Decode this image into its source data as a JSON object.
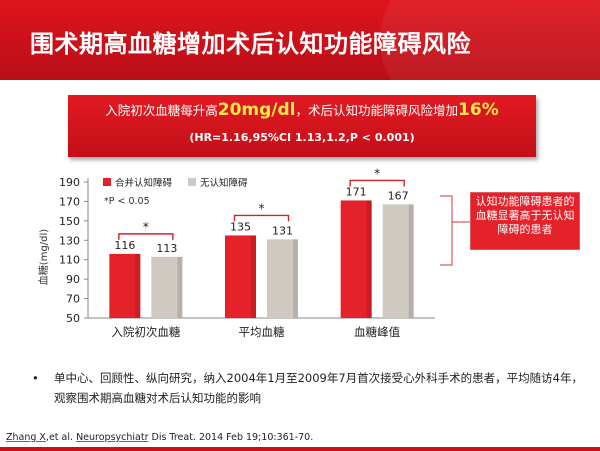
{
  "title": "围术期高血糖增加术后认知功能障碍风险",
  "banner": {
    "prefix": "入院初次血糖每升高",
    "highlight1": "20mg/dl",
    "middle": "，术后认知功能障碍风险增加",
    "highlight2": "16%",
    "stats": "(HR=1.16,95%CI 1.13,1.2,P < 0.001)"
  },
  "chart_data": {
    "type": "bar",
    "categories": [
      "入院初次血糖",
      "平均血糖",
      "血糖峰值"
    ],
    "series": [
      {
        "name": "合并认知障碍",
        "values": [
          116,
          135,
          171
        ],
        "color": "#e52129"
      },
      {
        "name": "无认知障碍",
        "values": [
          113,
          131,
          167
        ],
        "color": "#cfc9c2"
      }
    ],
    "ylabel": "血糖(mg/dl)",
    "ylim": [
      50,
      190
    ],
    "yticks": [
      50,
      70,
      90,
      110,
      130,
      150,
      170,
      190
    ],
    "legend_position": "top-left",
    "note": "*P < 0.05",
    "significance_marker": "*"
  },
  "callout": "认知功能障碍患者的血糖显著高于无认知障碍的患者",
  "bullet": {
    "symbol": "•",
    "text": "单中心、回顾性、纵向研究，纳入2004年1月至2009年7月首次接受心外科手术的患者，平均随访4年，观察围术期高血糖对术后认知功能的影响"
  },
  "citation": {
    "author": "Zhang X",
    "rest1": ",et al. ",
    "journal": "Neuropsychiatr",
    "rest2": " Dis Treat. 2014 Feb 19;10:361-70."
  }
}
